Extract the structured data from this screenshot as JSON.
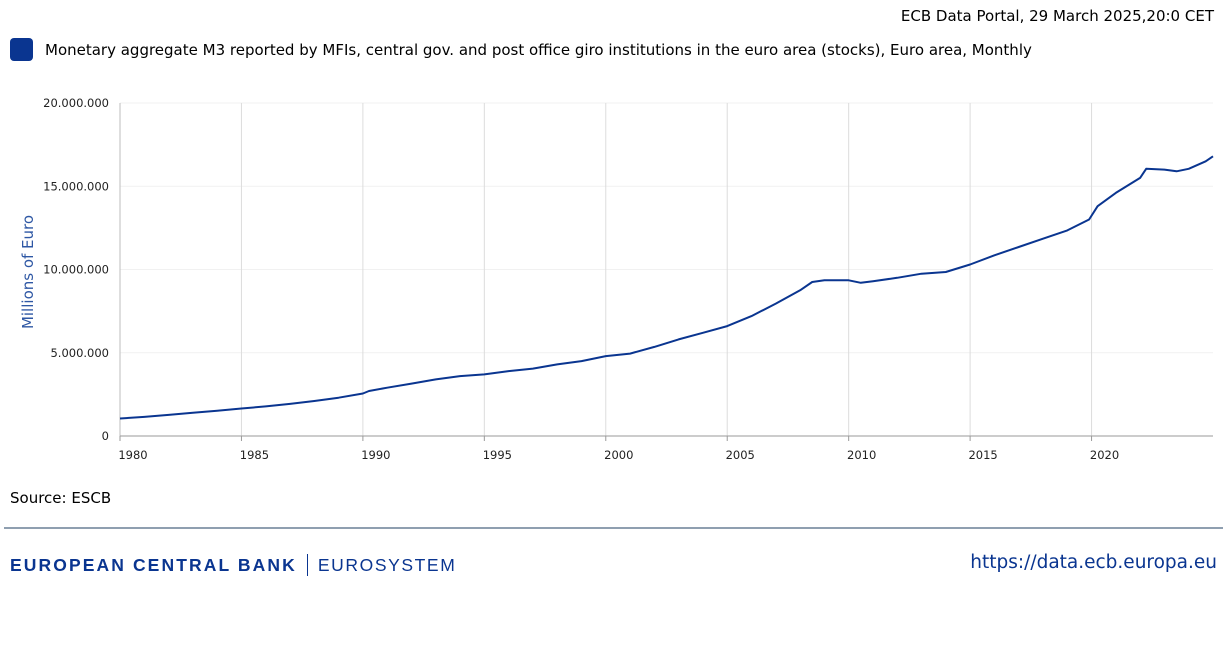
{
  "header": {
    "timestamp": "ECB Data Portal, 29 March 2025,20:0 CET"
  },
  "legend": {
    "label": "Monetary aggregate M3 reported by MFIs, central gov. and post office giro institutions in the euro area (stocks), Euro area, Monthly",
    "color": "#0a3590"
  },
  "source": "Source: ESCB",
  "footer": {
    "brand_main": "EUROPEAN CENTRAL BANK",
    "brand_sub": "EUROSYSTEM",
    "link": "https://data.ecb.europa.eu"
  },
  "chart_data": {
    "type": "line",
    "ylabel": "Millions of Euro",
    "xlabel": "",
    "ylim": [
      0,
      20000000
    ],
    "xlim": [
      1980,
      2025
    ],
    "yticks": [
      0,
      5000000,
      10000000,
      15000000,
      20000000
    ],
    "ytick_labels": [
      "0",
      "5.000.000",
      "10.000.000",
      "15.000.000",
      "20.000.000"
    ],
    "xticks": [
      1980,
      1985,
      1990,
      1995,
      2000,
      2005,
      2010,
      2015,
      2020
    ],
    "xtick_labels": [
      "1980",
      "1985",
      "1990",
      "1995",
      "2000",
      "2005",
      "2010",
      "2015",
      "2020"
    ],
    "grid": "vertical",
    "legend_position": "top-left",
    "series": [
      {
        "name": "Monetary aggregate M3 reported by MFIs, central gov. and post office giro institutions in the euro area (stocks), Euro area, Monthly",
        "color": "#0a3590",
        "x": [
          1980,
          1981,
          1982,
          1983,
          1984,
          1985,
          1986,
          1987,
          1988,
          1989,
          1990,
          1990.25,
          1991,
          1992,
          1993,
          1994,
          1995,
          1996,
          1997,
          1998,
          1999,
          2000,
          2001,
          2002,
          2003,
          2004,
          2005,
          2006,
          2007,
          2008,
          2008.5,
          2009,
          2010,
          2010.5,
          2011,
          2012,
          2013,
          2014,
          2015,
          2016,
          2017,
          2018,
          2019,
          2019.9,
          2020.25,
          2021,
          2022,
          2022.25,
          2023,
          2023.5,
          2024,
          2024.7,
          2025
        ],
        "values": [
          1050000,
          1150000,
          1270000,
          1400000,
          1520000,
          1650000,
          1780000,
          1930000,
          2100000,
          2300000,
          2550000,
          2700000,
          2900000,
          3150000,
          3400000,
          3600000,
          3700000,
          3900000,
          4050000,
          4300000,
          4500000,
          4800000,
          4950000,
          5350000,
          5800000,
          6200000,
          6600000,
          7200000,
          7950000,
          8750000,
          9250000,
          9350000,
          9350000,
          9200000,
          9300000,
          9500000,
          9750000,
          9850000,
          10300000,
          10850000,
          11350000,
          11850000,
          12350000,
          13000000,
          13800000,
          14600000,
          15500000,
          16050000,
          16000000,
          15900000,
          16050000,
          16500000,
          16800000
        ]
      }
    ]
  }
}
